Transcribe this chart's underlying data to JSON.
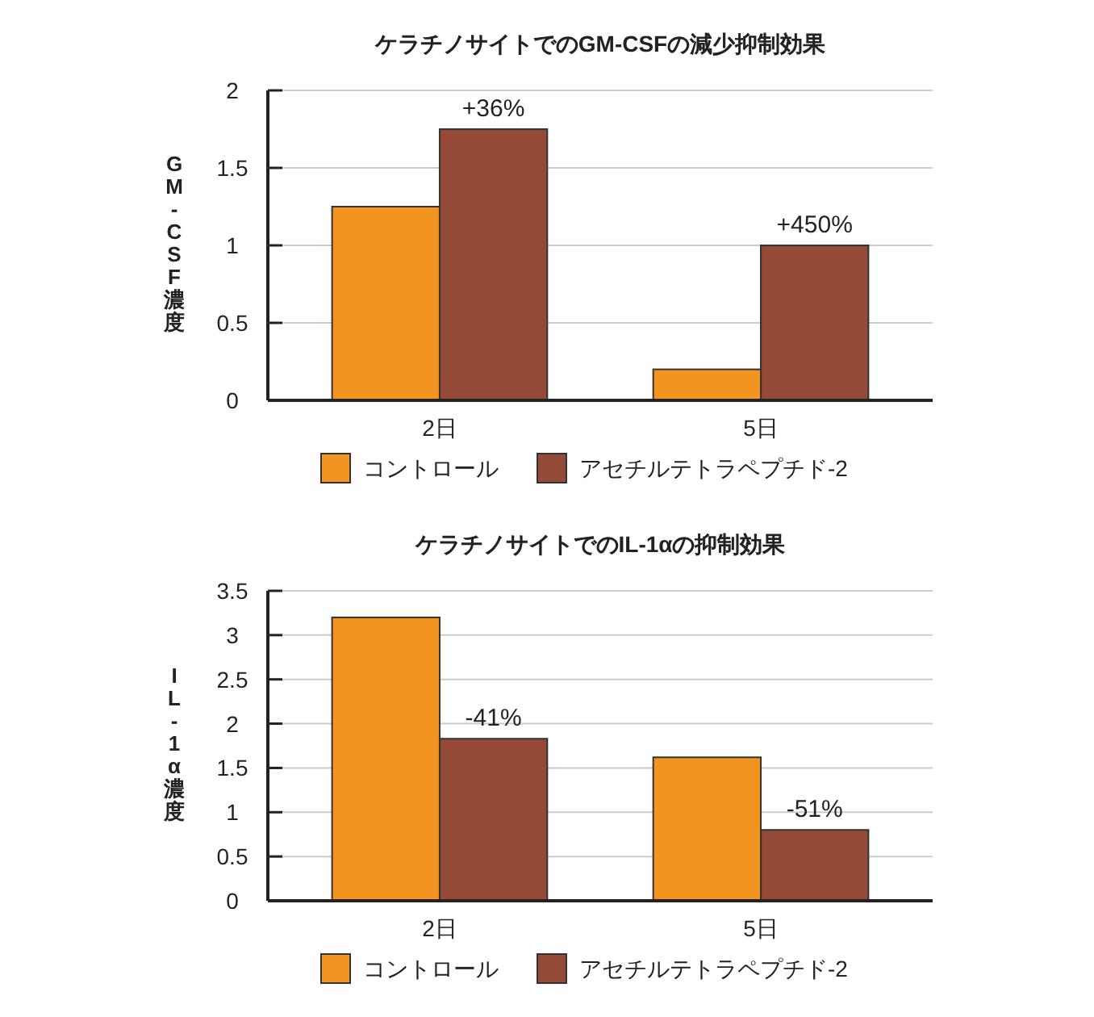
{
  "chart_data": [
    {
      "type": "bar",
      "title": "ケラチノサイトでのGM-CSFの減少抑制効果",
      "ylabel": "GM-CSF濃度",
      "categories": [
        "2日",
        "5日"
      ],
      "series": [
        {
          "name": "コントロール",
          "color": "#f39420",
          "values": [
            1.25,
            0.2
          ]
        },
        {
          "name": "アセチルテトラペプチド-2",
          "color": "#944a37",
          "values": [
            1.75,
            1.0
          ]
        }
      ],
      "annotations": [
        {
          "text": "+36%",
          "x": "2日",
          "y": 1.75
        },
        {
          "text": "+450%",
          "x": "5日",
          "y": 1.0
        }
      ],
      "ylim": [
        0,
        2
      ],
      "yticks": [
        0,
        0.5,
        1,
        1.5,
        2
      ],
      "grid": "y",
      "legend": "bottom"
    },
    {
      "type": "bar",
      "title": "ケラチノサイトでのIL-1αの抑制効果",
      "ylabel": "IL-1α濃度",
      "categories": [
        "2日",
        "5日"
      ],
      "series": [
        {
          "name": "コントロール",
          "color": "#f39420",
          "values": [
            3.2,
            1.62
          ]
        },
        {
          "name": "アセチルテトラペプチド-2",
          "color": "#944a37",
          "values": [
            1.83,
            0.8
          ]
        }
      ],
      "annotations": [
        {
          "text": "-41%",
          "x": "2日",
          "y": 1.83
        },
        {
          "text": "-51%",
          "x": "5日",
          "y": 0.8
        }
      ],
      "ylim": [
        0,
        3.5
      ],
      "yticks": [
        0,
        0.5,
        1,
        1.5,
        2,
        2.5,
        3,
        3.5
      ],
      "grid": "y",
      "legend": "bottom"
    }
  ]
}
